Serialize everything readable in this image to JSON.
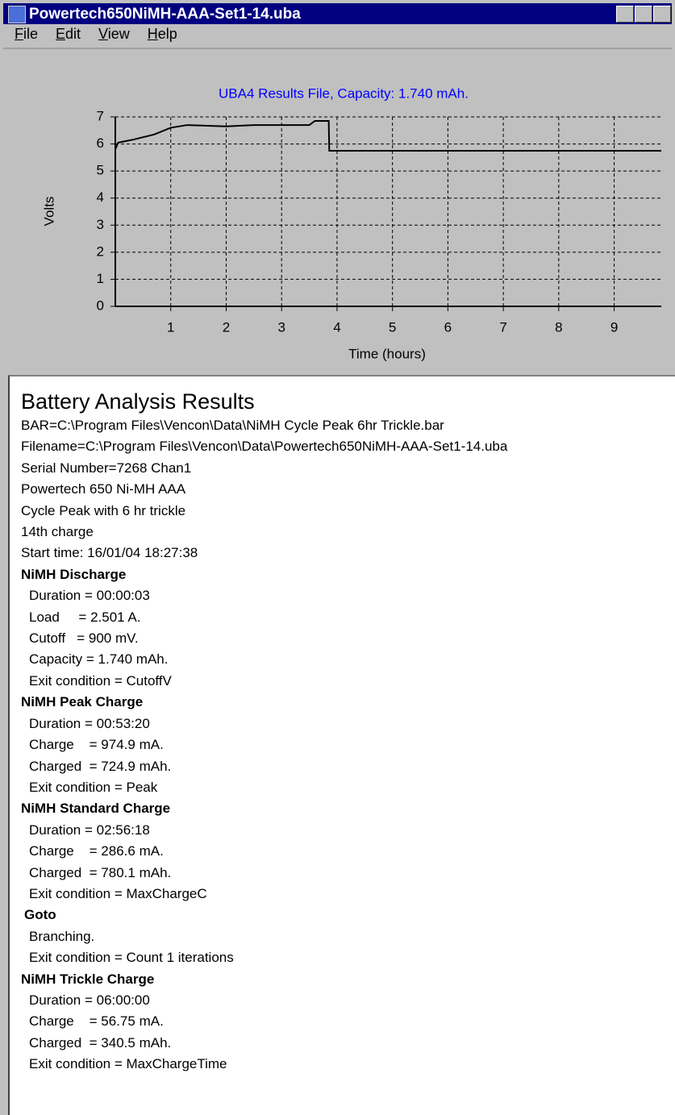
{
  "window": {
    "title": "Powertech650NiMH-AAA-Set1-14.uba"
  },
  "menu": [
    "File",
    "Edit",
    "View",
    "Help"
  ],
  "chart_data": {
    "type": "line",
    "title": "UBA4 Results File, Capacity: 1.740 mAh.",
    "x_label": "Time (hours)",
    "y_label": "Volts",
    "x": [
      0,
      0.05,
      0.3,
      0.7,
      1.0,
      1.3,
      2.0,
      2.5,
      3.0,
      3.5,
      3.6,
      3.85,
      3.86,
      9.85
    ],
    "values": [
      5.8,
      6.05,
      6.15,
      6.35,
      6.6,
      6.7,
      6.65,
      6.7,
      6.7,
      6.7,
      6.85,
      6.85,
      5.75,
      5.75
    ],
    "color": "#000000",
    "xlim": [
      0,
      9.85
    ],
    "xticks": [
      1,
      2,
      3,
      4,
      5,
      6,
      7,
      8,
      9
    ],
    "ylim": [
      0,
      7
    ],
    "yticks": [
      0,
      1,
      2,
      3,
      4,
      5,
      6,
      7
    ],
    "grid": true
  },
  "report": {
    "title": "Battery Analysis Results",
    "header_lines": [
      "BAR=C:\\Program Files\\Vencon\\Data\\NiMH Cycle Peak 6hr Trickle.bar",
      "Filename=C:\\Program Files\\Vencon\\Data\\Powertech650NiMH-AAA-Set1-14.uba",
      "Serial Number=7268 Chan1",
      "Powertech 650 Ni-MH AAA",
      "Cycle Peak with 6 hr trickle",
      "14th charge",
      "Start time: 16/01/04 18:27:38"
    ],
    "sections": [
      {
        "heading": "NiMH Discharge",
        "lines": [
          "Duration = 00:00:03",
          "Load     = 2.501 A.",
          "Cutoff   = 900 mV.",
          "Capacity = 1.740 mAh.",
          "Exit condition = CutoffV"
        ]
      },
      {
        "heading": "NiMH Peak Charge",
        "lines": [
          "Duration = 00:53:20",
          "Charge    = 974.9 mA.",
          "Charged  = 724.9 mAh.",
          "Exit condition = Peak"
        ]
      },
      {
        "heading": "NiMH Standard Charge",
        "lines": [
          "Duration = 02:56:18",
          "Charge    = 286.6 mA.",
          "Charged  = 780.1 mAh.",
          "Exit condition = MaxChargeC"
        ]
      },
      {
        "heading": "Goto",
        "lines": [
          "Branching.",
          "Exit condition = Count 1 iterations"
        ]
      },
      {
        "heading": "NiMH Trickle Charge",
        "lines": [
          "Duration = 06:00:00",
          "Charge    = 56.75 mA.",
          "Charged  = 340.5 mAh.",
          "Exit condition = MaxChargeTime"
        ]
      }
    ]
  }
}
